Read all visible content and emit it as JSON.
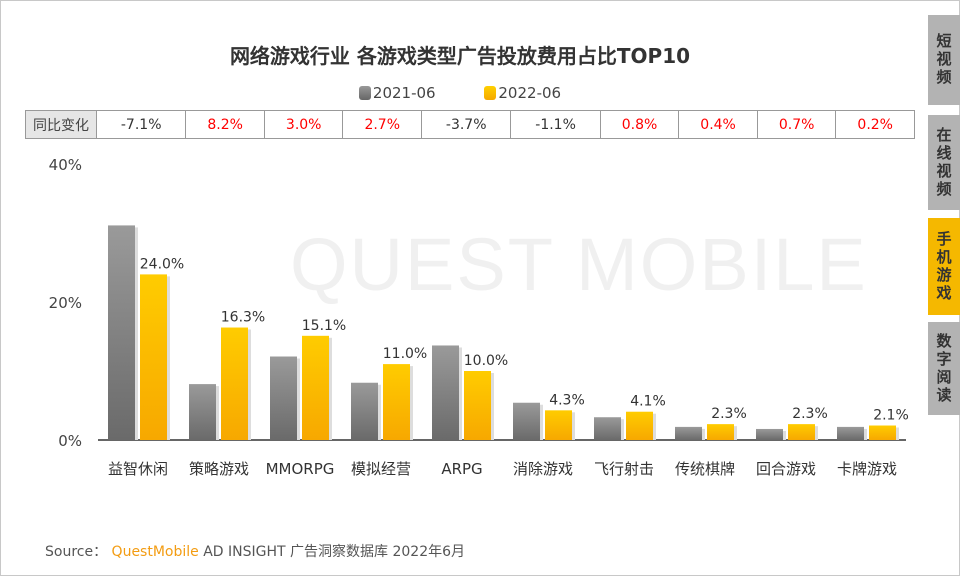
{
  "title": "网络游戏行业 各游戏类型广告投放费用占比TOP10",
  "legend": [
    {
      "name": "2021-06",
      "color": "#808080"
    },
    {
      "name": "2022-06",
      "color": "#ffc000"
    }
  ],
  "yoy": {
    "label": "同比变化",
    "values": [
      "-7.1%",
      "8.2%",
      "3.0%",
      "2.7%",
      "-3.7%",
      "-1.1%",
      "0.8%",
      "0.4%",
      "0.7%",
      "0.2%"
    ],
    "neg_color": "#333333",
    "pos_color": "#ff0000"
  },
  "watermark": "QUEST MOBILE",
  "tabs": [
    {
      "label": "短视频",
      "active": false
    },
    {
      "label": "在线视频",
      "active": false
    },
    {
      "label": "手机游戏",
      "active": true
    },
    {
      "label": "数字阅读",
      "active": false
    }
  ],
  "source": {
    "prefix": "Source：",
    "brand": "QuestMobile",
    "rest": "AD INSIGHT 广告洞察数据库 2022年6月"
  },
  "chart_data": {
    "type": "bar",
    "categories": [
      "益智休闲",
      "策略游戏",
      "MMORPG",
      "模拟经营",
      "ARPG",
      "消除游戏",
      "飞行射击",
      "传统棋牌",
      "回合游戏",
      "卡牌游戏"
    ],
    "series": [
      {
        "name": "2021-06",
        "values": [
          31.1,
          8.1,
          12.1,
          8.3,
          13.7,
          5.4,
          3.3,
          1.9,
          1.6,
          1.9
        ],
        "labeled": false
      },
      {
        "name": "2022-06",
        "values": [
          24.0,
          16.3,
          15.1,
          11.0,
          10.0,
          4.3,
          4.1,
          2.3,
          2.3,
          2.1
        ],
        "labeled": true
      }
    ],
    "ylim": [
      0,
      40
    ],
    "yticks": [
      "0%",
      "20%",
      "40%"
    ],
    "ytick_values": [
      0,
      20,
      40
    ],
    "grid": false,
    "legend_position": "top"
  }
}
